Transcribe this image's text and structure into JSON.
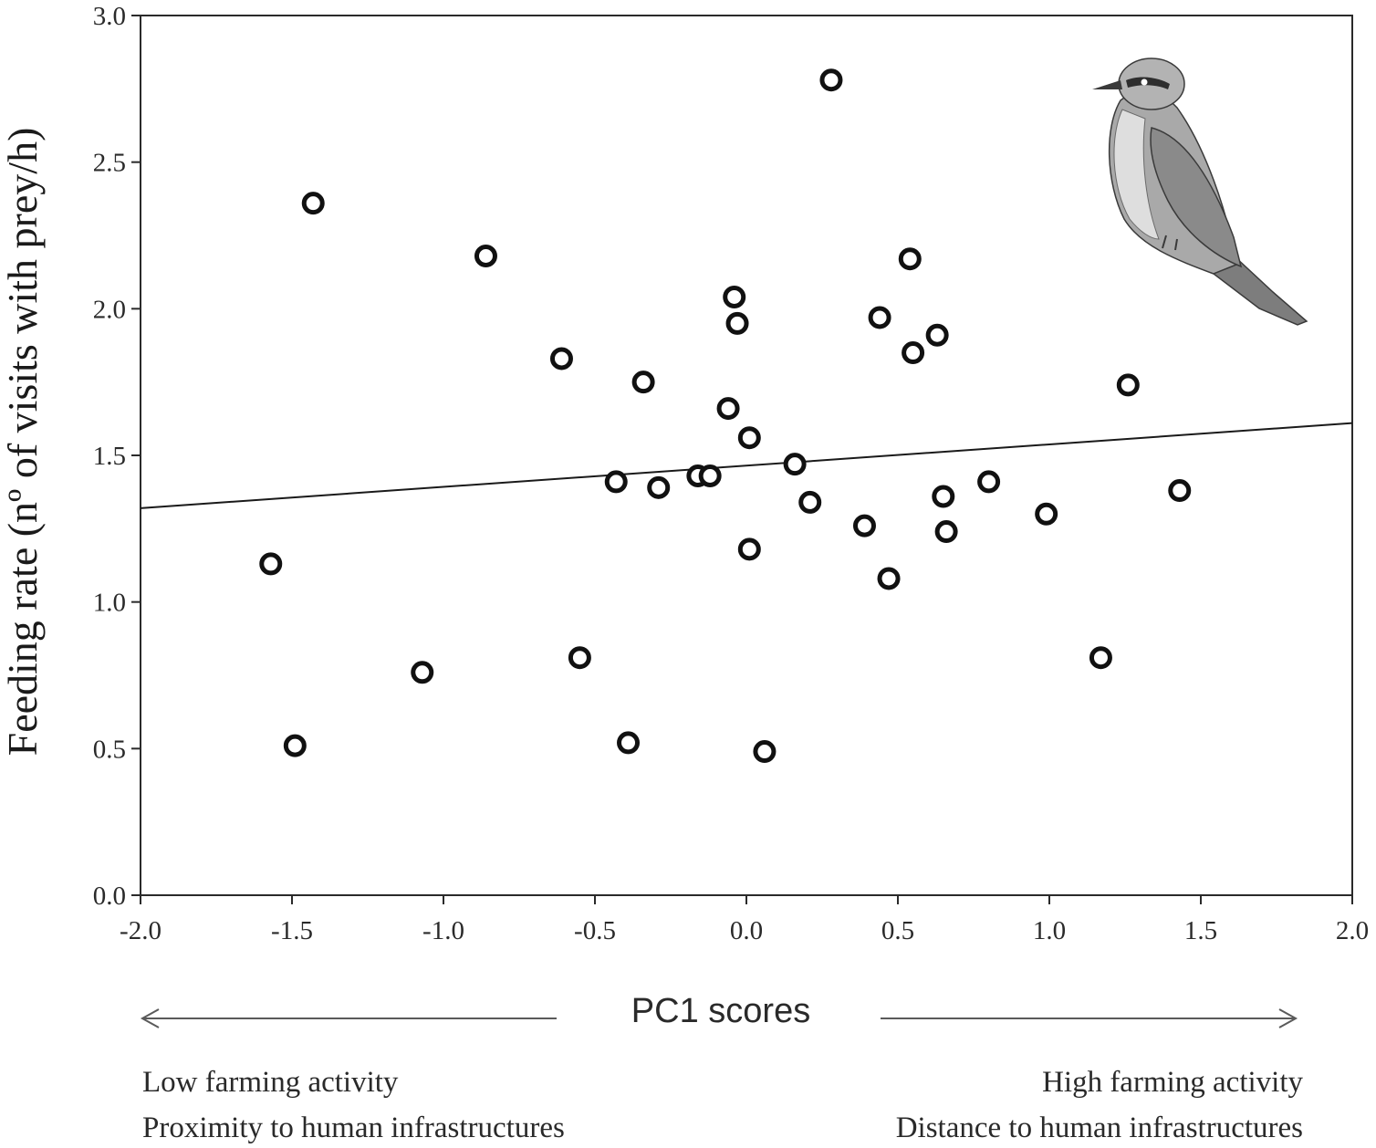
{
  "chart_data": {
    "type": "scatter",
    "title": "",
    "xlabel": "PC1 scores",
    "ylabel": "Feeding rate (nº of visits with prey/h)",
    "xlim": [
      -2.0,
      2.0
    ],
    "ylim": [
      0.0,
      3.0
    ],
    "x_ticks": [
      "-2.0",
      "-1.5",
      "-1.0",
      "-0.5",
      "0.0",
      "0.5",
      "1.0",
      "1.5",
      "2.0"
    ],
    "y_ticks": [
      "0.0",
      "0.5",
      "1.0",
      "1.5",
      "2.0",
      "2.5",
      "3.0"
    ],
    "grid": false,
    "points": [
      {
        "x": -1.57,
        "y": 1.13
      },
      {
        "x": -1.49,
        "y": 0.51
      },
      {
        "x": -1.43,
        "y": 2.36
      },
      {
        "x": -1.07,
        "y": 0.76
      },
      {
        "x": -0.86,
        "y": 2.18
      },
      {
        "x": -0.61,
        "y": 1.83
      },
      {
        "x": -0.55,
        "y": 0.81
      },
      {
        "x": -0.43,
        "y": 1.41
      },
      {
        "x": -0.39,
        "y": 0.52
      },
      {
        "x": -0.34,
        "y": 1.75
      },
      {
        "x": -0.29,
        "y": 1.39
      },
      {
        "x": -0.16,
        "y": 1.43
      },
      {
        "x": -0.12,
        "y": 1.43
      },
      {
        "x": -0.06,
        "y": 1.66
      },
      {
        "x": -0.04,
        "y": 2.04
      },
      {
        "x": -0.03,
        "y": 1.95
      },
      {
        "x": 0.01,
        "y": 1.56
      },
      {
        "x": 0.01,
        "y": 1.18
      },
      {
        "x": 0.06,
        "y": 0.49
      },
      {
        "x": 0.16,
        "y": 1.47
      },
      {
        "x": 0.21,
        "y": 1.34
      },
      {
        "x": 0.28,
        "y": 2.78
      },
      {
        "x": 0.39,
        "y": 1.26
      },
      {
        "x": 0.44,
        "y": 1.97
      },
      {
        "x": 0.47,
        "y": 1.08
      },
      {
        "x": 0.54,
        "y": 2.17
      },
      {
        "x": 0.55,
        "y": 1.85
      },
      {
        "x": 0.63,
        "y": 1.91
      },
      {
        "x": 0.65,
        "y": 1.36
      },
      {
        "x": 0.66,
        "y": 1.24
      },
      {
        "x": 0.8,
        "y": 1.41
      },
      {
        "x": 0.99,
        "y": 1.3
      },
      {
        "x": 1.17,
        "y": 0.81
      },
      {
        "x": 1.26,
        "y": 1.74
      },
      {
        "x": 1.43,
        "y": 1.38
      }
    ],
    "regression_line": {
      "x": [
        -2.0,
        2.0
      ],
      "y": [
        1.32,
        1.61
      ]
    },
    "annotations": {
      "left_line1": "Low farming activity",
      "left_line2": "Proximity to human infrastructures",
      "right_line1": "High farming activity",
      "right_line2": "Distance to human infrastructures"
    },
    "illustration": "bird-illustration"
  }
}
